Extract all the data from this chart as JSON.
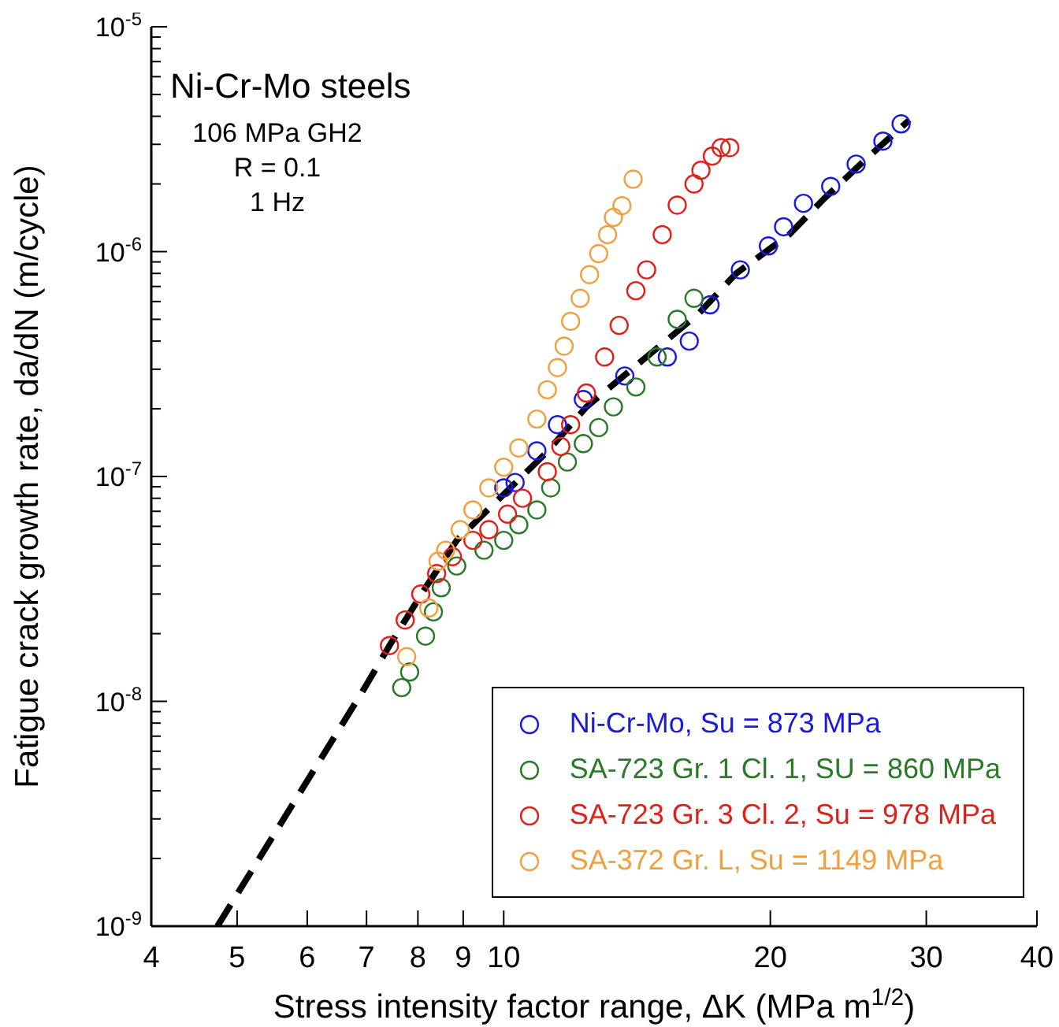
{
  "chart_data": {
    "type": "scatter",
    "xlabel": "Stress intensity factor range, ΔK (MPa m$^{1/2}$)",
    "ylabel": "Fatigue crack growth rate, da/dN (m/cycle)",
    "annotations": [
      "Ni-Cr-Mo steels",
      "106 MPa GH2",
      "R = 0.1",
      "1 Hz"
    ],
    "log": "xy",
    "xlim": [
      4,
      40
    ],
    "xticks": [
      4,
      5,
      6,
      7,
      8,
      9,
      10,
      20,
      30,
      40
    ],
    "ylim": [
      1e-09,
      1e-05
    ],
    "yticks": [
      {
        "value": 1e-09,
        "label": "10$^{-9}$"
      },
      {
        "value": 2e-09,
        "label": null
      },
      {
        "value": 3e-09,
        "label": null
      },
      {
        "value": 4e-09,
        "label": null
      },
      {
        "value": 5e-09,
        "label": null
      },
      {
        "value": 6e-09,
        "label": null
      },
      {
        "value": 7e-09,
        "label": null
      },
      {
        "value": 8e-09,
        "label": null
      },
      {
        "value": 9e-09,
        "label": null
      },
      {
        "value": 1e-08,
        "label": "10$^{-8}$"
      },
      {
        "value": 2e-08,
        "label": null
      },
      {
        "value": 3e-08,
        "label": null
      },
      {
        "value": 4e-08,
        "label": null
      },
      {
        "value": 5e-08,
        "label": null
      },
      {
        "value": 6e-08,
        "label": null
      },
      {
        "value": 7e-08,
        "label": null
      },
      {
        "value": 8e-08,
        "label": null
      },
      {
        "value": 9e-08,
        "label": null
      },
      {
        "value": 1e-07,
        "label": "10$^{-7}$"
      },
      {
        "value": 2e-07,
        "label": null
      },
      {
        "value": 3e-07,
        "label": null
      },
      {
        "value": 4e-07,
        "label": null
      },
      {
        "value": 5e-07,
        "label": null
      },
      {
        "value": 6e-07,
        "label": null
      },
      {
        "value": 7e-07,
        "label": null
      },
      {
        "value": 8e-07,
        "label": null
      },
      {
        "value": 9e-07,
        "label": null
      },
      {
        "value": 1e-06,
        "label": "10$^{-6}$"
      },
      {
        "value": 2e-06,
        "label": null
      },
      {
        "value": 3e-06,
        "label": null
      },
      {
        "value": 4e-06,
        "label": null
      },
      {
        "value": 5e-06,
        "label": null
      },
      {
        "value": 6e-06,
        "label": null
      },
      {
        "value": 7e-06,
        "label": null
      },
      {
        "value": 8e-06,
        "label": null
      },
      {
        "value": 9e-06,
        "label": null
      },
      {
        "value": 1e-05,
        "label": "10$^{-5}$"
      }
    ],
    "legend": "bottom right",
    "marker": "circle",
    "series": [
      {
        "name": "Ni-Cr-Mo, Su = 873 MPa",
        "color": "#1a1adc",
        "x": [
          10.0,
          10.3,
          10.9,
          11.5,
          12.3,
          13.7,
          15.3,
          16.2,
          17.1,
          18.5,
          19.9,
          20.7,
          21.8,
          23.4,
          25.0,
          26.8,
          28.1
        ],
        "values": [
          8.9e-08,
          9.4e-08,
          1.3e-07,
          1.7e-07,
          2.2e-07,
          2.8e-07,
          3.4e-07,
          4e-07,
          5.8e-07,
          8.3e-07,
          1.06e-06,
          1.29e-06,
          1.64e-06,
          1.95e-06,
          2.45e-06,
          3.1e-06,
          3.7e-06
        ]
      },
      {
        "name": "SA-723 Gr. 1 Cl. 1, SU = 860 MPa",
        "color": "#2a7a2a",
        "x": [
          7.67,
          7.83,
          8.16,
          8.33,
          8.5,
          8.85,
          9.5,
          10.0,
          10.4,
          10.9,
          11.3,
          11.8,
          12.3,
          12.8,
          13.3,
          14.1,
          14.9,
          15.7,
          16.4
        ],
        "values": [
          1.15e-08,
          1.35e-08,
          1.95e-08,
          2.5e-08,
          3.2e-08,
          4e-08,
          4.7e-08,
          5.2e-08,
          6.1e-08,
          7.1e-08,
          8.9e-08,
          1.16e-07,
          1.4e-07,
          1.65e-07,
          2.04e-07,
          2.5e-07,
          3.4e-07,
          5e-07,
          6.2e-07
        ]
      },
      {
        "name": "SA-723 Gr. 3 Cl. 2, Su = 978 MPa",
        "color": "#e0201a",
        "x": [
          7.43,
          7.74,
          8.06,
          8.4,
          8.75,
          9.23,
          9.62,
          10.1,
          10.5,
          11.2,
          11.6,
          11.9,
          12.4,
          13.0,
          13.5,
          14.1,
          14.5,
          15.1,
          15.7,
          16.4,
          16.7,
          17.2,
          17.6,
          18.0
        ],
        "values": [
          1.77e-08,
          2.3e-08,
          3e-08,
          3.7e-08,
          4.4e-08,
          5.2e-08,
          5.8e-08,
          6.8e-08,
          8e-08,
          1.05e-07,
          1.36e-07,
          1.7e-07,
          2.35e-07,
          3.4e-07,
          4.7e-07,
          6.7e-07,
          8.3e-07,
          1.19e-06,
          1.61e-06,
          2e-06,
          2.3e-06,
          2.66e-06,
          2.9e-06,
          2.9e-06
        ]
      },
      {
        "name": "SA-372 Gr. L, Su = 1149 MPa",
        "color": "#f0a040",
        "x": [
          7.77,
          8.23,
          8.43,
          8.6,
          8.93,
          9.23,
          9.62,
          10.0,
          10.4,
          10.9,
          11.2,
          11.5,
          11.7,
          11.9,
          12.2,
          12.5,
          12.8,
          13.1,
          13.3,
          13.6,
          14.0
        ],
        "values": [
          1.58e-08,
          2.6e-08,
          4.2e-08,
          4.7e-08,
          5.8e-08,
          7.1e-08,
          8.9e-08,
          1.1e-07,
          1.34e-07,
          1.8e-07,
          2.43e-07,
          3.05e-07,
          3.8e-07,
          4.9e-07,
          6.2e-07,
          7.9e-07,
          9.8e-07,
          1.19e-06,
          1.42e-06,
          1.6e-06,
          2.1e-06
        ]
      },
      {
        "type": "line",
        "color": "#000000",
        "line_style": "dashed",
        "marker": "none",
        "x": [
          4.75,
          6.93,
          7.43,
          8.16,
          8.85,
          11.2,
          12.4,
          16.6,
          18.3,
          21.0,
          23.0,
          25.4,
          28.7
        ],
        "values": [
          1e-09,
          1.11e-08,
          1.77e-08,
          3.2e-08,
          5.2e-08,
          1.29e-07,
          2.04e-07,
          5.3e-07,
          8e-07,
          1.19e-06,
          1.72e-06,
          2.49e-06,
          3.85e-06
        ]
      }
    ]
  }
}
